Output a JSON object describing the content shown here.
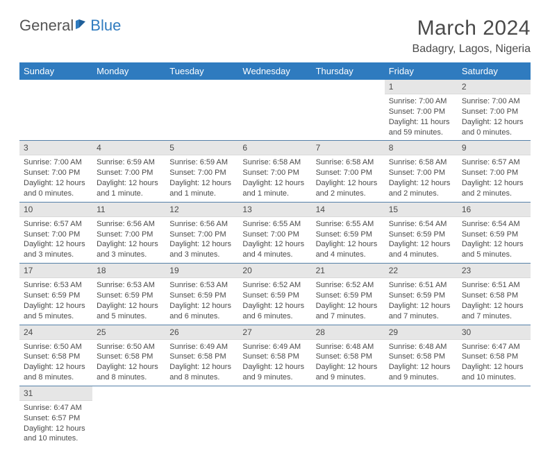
{
  "logo": {
    "general": "General",
    "blue": "Blue"
  },
  "title": "March 2024",
  "location": "Badagry, Lagos, Nigeria",
  "colors": {
    "header_bg": "#2f7bbf",
    "header_fg": "#ffffff",
    "daynum_bg": "#e6e6e6",
    "row_border": "#537fa8",
    "text": "#4a4a4a"
  },
  "weekdays": [
    "Sunday",
    "Monday",
    "Tuesday",
    "Wednesday",
    "Thursday",
    "Friday",
    "Saturday"
  ],
  "days": {
    "1": {
      "sr": "7:00 AM",
      "ss": "7:00 PM",
      "dl": "11 hours and 59 minutes."
    },
    "2": {
      "sr": "7:00 AM",
      "ss": "7:00 PM",
      "dl": "12 hours and 0 minutes."
    },
    "3": {
      "sr": "7:00 AM",
      "ss": "7:00 PM",
      "dl": "12 hours and 0 minutes."
    },
    "4": {
      "sr": "6:59 AM",
      "ss": "7:00 PM",
      "dl": "12 hours and 1 minute."
    },
    "5": {
      "sr": "6:59 AM",
      "ss": "7:00 PM",
      "dl": "12 hours and 1 minute."
    },
    "6": {
      "sr": "6:58 AM",
      "ss": "7:00 PM",
      "dl": "12 hours and 1 minute."
    },
    "7": {
      "sr": "6:58 AM",
      "ss": "7:00 PM",
      "dl": "12 hours and 2 minutes."
    },
    "8": {
      "sr": "6:58 AM",
      "ss": "7:00 PM",
      "dl": "12 hours and 2 minutes."
    },
    "9": {
      "sr": "6:57 AM",
      "ss": "7:00 PM",
      "dl": "12 hours and 2 minutes."
    },
    "10": {
      "sr": "6:57 AM",
      "ss": "7:00 PM",
      "dl": "12 hours and 3 minutes."
    },
    "11": {
      "sr": "6:56 AM",
      "ss": "7:00 PM",
      "dl": "12 hours and 3 minutes."
    },
    "12": {
      "sr": "6:56 AM",
      "ss": "7:00 PM",
      "dl": "12 hours and 3 minutes."
    },
    "13": {
      "sr": "6:55 AM",
      "ss": "7:00 PM",
      "dl": "12 hours and 4 minutes."
    },
    "14": {
      "sr": "6:55 AM",
      "ss": "6:59 PM",
      "dl": "12 hours and 4 minutes."
    },
    "15": {
      "sr": "6:54 AM",
      "ss": "6:59 PM",
      "dl": "12 hours and 4 minutes."
    },
    "16": {
      "sr": "6:54 AM",
      "ss": "6:59 PM",
      "dl": "12 hours and 5 minutes."
    },
    "17": {
      "sr": "6:53 AM",
      "ss": "6:59 PM",
      "dl": "12 hours and 5 minutes."
    },
    "18": {
      "sr": "6:53 AM",
      "ss": "6:59 PM",
      "dl": "12 hours and 5 minutes."
    },
    "19": {
      "sr": "6:53 AM",
      "ss": "6:59 PM",
      "dl": "12 hours and 6 minutes."
    },
    "20": {
      "sr": "6:52 AM",
      "ss": "6:59 PM",
      "dl": "12 hours and 6 minutes."
    },
    "21": {
      "sr": "6:52 AM",
      "ss": "6:59 PM",
      "dl": "12 hours and 7 minutes."
    },
    "22": {
      "sr": "6:51 AM",
      "ss": "6:59 PM",
      "dl": "12 hours and 7 minutes."
    },
    "23": {
      "sr": "6:51 AM",
      "ss": "6:58 PM",
      "dl": "12 hours and 7 minutes."
    },
    "24": {
      "sr": "6:50 AM",
      "ss": "6:58 PM",
      "dl": "12 hours and 8 minutes."
    },
    "25": {
      "sr": "6:50 AM",
      "ss": "6:58 PM",
      "dl": "12 hours and 8 minutes."
    },
    "26": {
      "sr": "6:49 AM",
      "ss": "6:58 PM",
      "dl": "12 hours and 8 minutes."
    },
    "27": {
      "sr": "6:49 AM",
      "ss": "6:58 PM",
      "dl": "12 hours and 9 minutes."
    },
    "28": {
      "sr": "6:48 AM",
      "ss": "6:58 PM",
      "dl": "12 hours and 9 minutes."
    },
    "29": {
      "sr": "6:48 AM",
      "ss": "6:58 PM",
      "dl": "12 hours and 9 minutes."
    },
    "30": {
      "sr": "6:47 AM",
      "ss": "6:58 PM",
      "dl": "12 hours and 10 minutes."
    },
    "31": {
      "sr": "6:47 AM",
      "ss": "6:57 PM",
      "dl": "12 hours and 10 minutes."
    }
  },
  "labels": {
    "sunrise": "Sunrise:",
    "sunset": "Sunset:",
    "daylight": "Daylight:"
  },
  "first_day_column": 5,
  "num_days": 31
}
